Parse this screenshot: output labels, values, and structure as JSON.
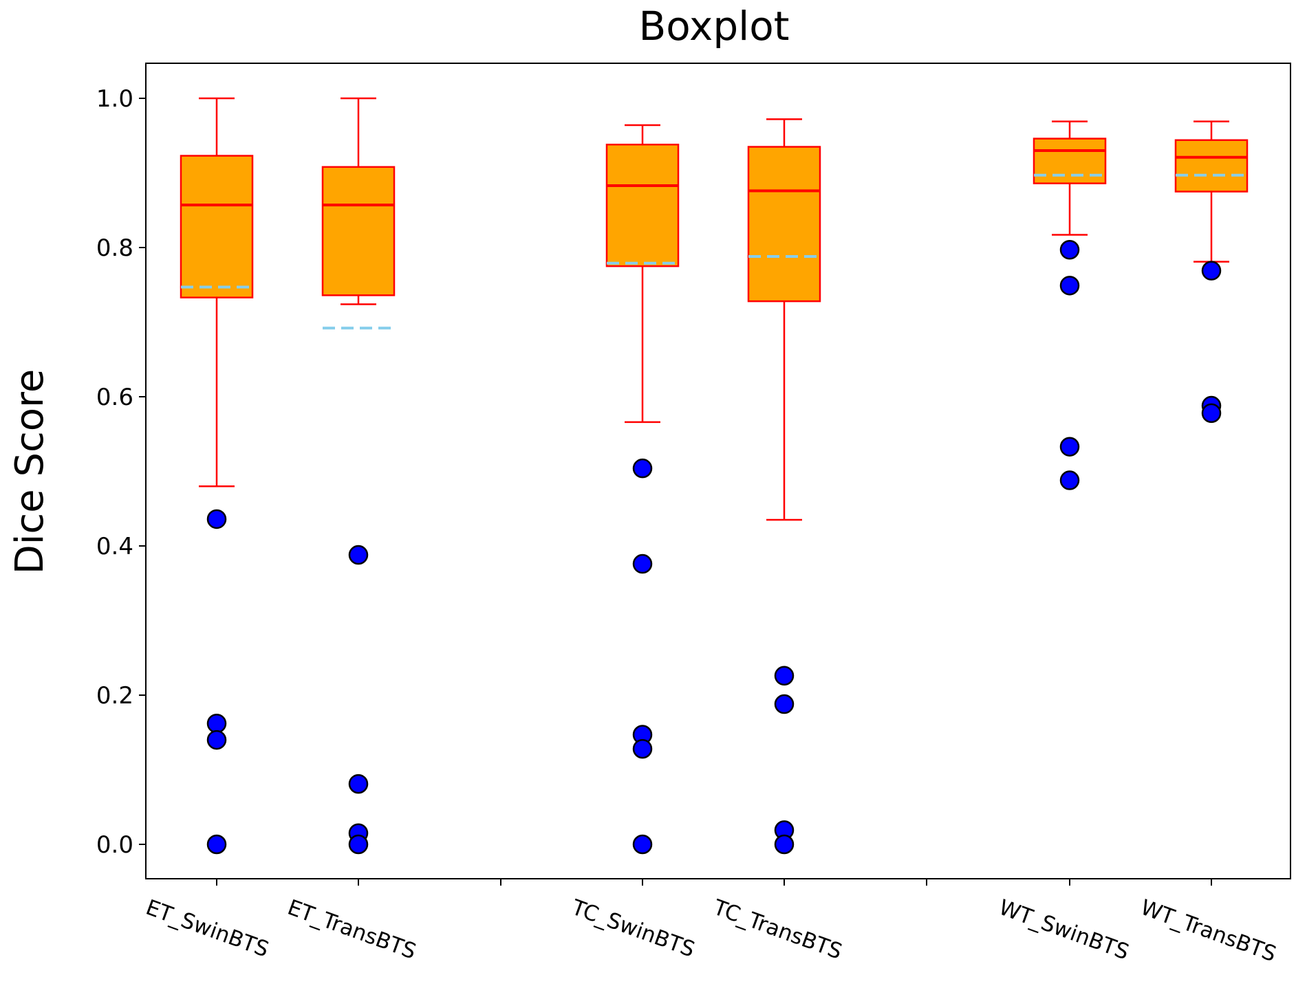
{
  "chart_data": {
    "type": "box",
    "title": "Boxplot",
    "xlabel": "",
    "ylabel": "Dice Score",
    "ylim": [
      -0.05,
      1.05
    ],
    "yticks": [
      0.0,
      0.2,
      0.4,
      0.6,
      0.8,
      1.0
    ],
    "ytick_labels": [
      "0.0",
      "0.2",
      "0.4",
      "0.6",
      "0.8",
      "1.0"
    ],
    "grid": false,
    "colors": {
      "box_fill": "#FFA500",
      "box_edge": "#FF0000",
      "median": "#FF0000",
      "mean": "#87CEEB",
      "outlier": "#0000FF",
      "outlier_edge": "#000000"
    },
    "boxes": [
      {
        "label": "ET_SwinBTS",
        "group": 0,
        "whisker_low": 0.48,
        "q1": 0.733,
        "median": 0.857,
        "q3": 0.923,
        "whisker_high": 1.0,
        "mean": 0.747,
        "outliers": [
          0.436,
          0.162,
          0.14,
          0.0
        ]
      },
      {
        "label": "ET_TransBTS",
        "group": 0,
        "whisker_low": 0.724,
        "q1": 0.736,
        "median": 0.857,
        "q3": 0.908,
        "whisker_high": 1.0,
        "mean": 0.692,
        "outliers": [
          0.388,
          0.081,
          0.015,
          0.0
        ]
      },
      {
        "label": "TC_SwinBTS",
        "group": 1,
        "whisker_low": 0.566,
        "q1": 0.775,
        "median": 0.883,
        "q3": 0.938,
        "whisker_high": 0.964,
        "mean": 0.779,
        "outliers": [
          0.504,
          0.376,
          0.147,
          0.128,
          0.0
        ]
      },
      {
        "label": "TC_TransBTS",
        "group": 1,
        "whisker_low": 0.435,
        "q1": 0.728,
        "median": 0.876,
        "q3": 0.935,
        "whisker_high": 0.972,
        "mean": 0.788,
        "outliers": [
          0.226,
          0.188,
          0.019,
          0.0
        ]
      },
      {
        "label": "WT_SwinBTS",
        "group": 2,
        "whisker_low": 0.817,
        "q1": 0.886,
        "median": 0.93,
        "q3": 0.946,
        "whisker_high": 0.969,
        "mean": 0.897,
        "outliers": [
          0.797,
          0.749,
          0.533,
          0.488
        ]
      },
      {
        "label": "WT_TransBTS",
        "group": 2,
        "whisker_low": 0.781,
        "q1": 0.875,
        "median": 0.921,
        "q3": 0.944,
        "whisker_high": 0.969,
        "mean": 0.897,
        "outliers": [
          0.769,
          0.588,
          0.578
        ]
      }
    ]
  }
}
